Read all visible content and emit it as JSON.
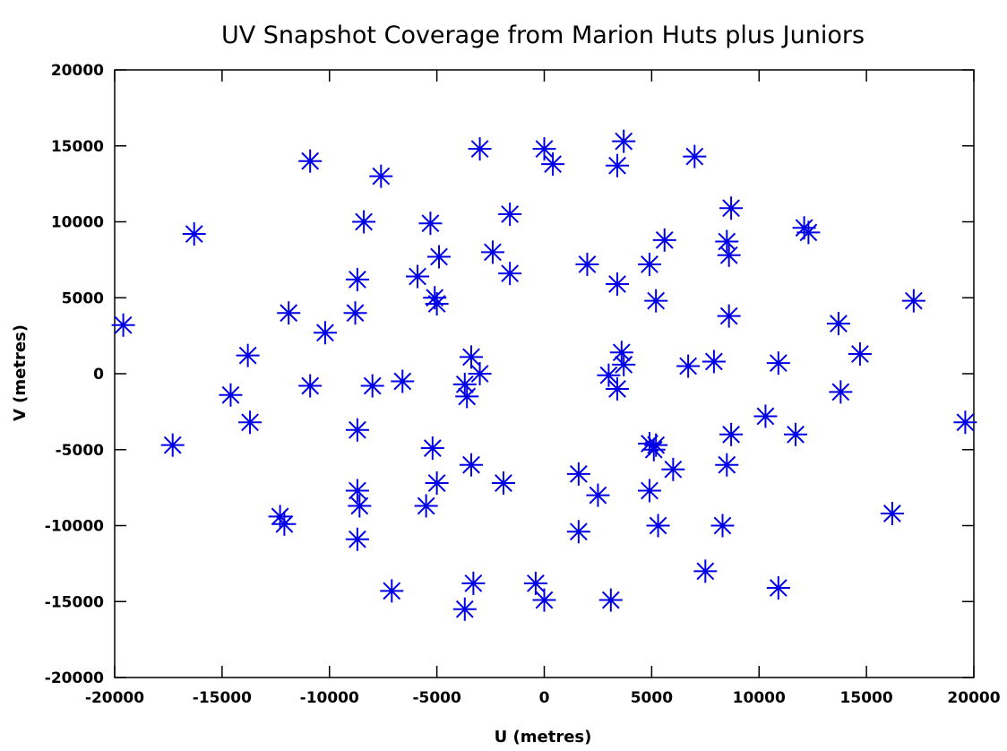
{
  "chart_data": {
    "type": "scatter",
    "title": "UV Snapshot Coverage from Marion Huts plus Juniors",
    "xlabel": "U (metres)",
    "ylabel": "V (metres)",
    "xlim": [
      -20000,
      20000
    ],
    "ylim": [
      -20000,
      20000
    ],
    "xticks": [
      -20000,
      -15000,
      -10000,
      -5000,
      0,
      5000,
      10000,
      15000,
      20000
    ],
    "yticks": [
      -20000,
      -15000,
      -10000,
      -5000,
      0,
      5000,
      10000,
      15000,
      20000
    ],
    "grid": false,
    "marker_color": "#0000e6",
    "marker": "asterisk",
    "points": [
      [
        -19600,
        3200
      ],
      [
        -17300,
        -4700
      ],
      [
        -16300,
        9200
      ],
      [
        -14600,
        -1400
      ],
      [
        -13800,
        1200
      ],
      [
        -13700,
        -3200
      ],
      [
        -12300,
        -9400
      ],
      [
        -12100,
        -9900
      ],
      [
        -11900,
        4000
      ],
      [
        -10900,
        14000
      ],
      [
        -10900,
        -800
      ],
      [
        -10200,
        2700
      ],
      [
        -8800,
        4000
      ],
      [
        -8700,
        6200
      ],
      [
        -8700,
        -3700
      ],
      [
        -8700,
        -7700
      ],
      [
        -8600,
        -8700
      ],
      [
        -8700,
        -10900
      ],
      [
        -8400,
        10000
      ],
      [
        -8000,
        -800
      ],
      [
        -7600,
        13000
      ],
      [
        -7100,
        -14300
      ],
      [
        -6600,
        -500
      ],
      [
        -5900,
        6400
      ],
      [
        -5500,
        -8700
      ],
      [
        -5300,
        9900
      ],
      [
        -5200,
        -4900
      ],
      [
        -5100,
        5000
      ],
      [
        -5000,
        4600
      ],
      [
        -5000,
        -7200
      ],
      [
        -4900,
        7700
      ],
      [
        -3700,
        -700
      ],
      [
        -3600,
        -1500
      ],
      [
        -3700,
        -15500
      ],
      [
        -3400,
        1100
      ],
      [
        -3400,
        -6000
      ],
      [
        -3300,
        -13800
      ],
      [
        -3000,
        14800
      ],
      [
        -3000,
        0
      ],
      [
        -2400,
        8000
      ],
      [
        -1900,
        -7200
      ],
      [
        -1600,
        10500
      ],
      [
        -1600,
        6600
      ],
      [
        -400,
        -13800
      ],
      [
        0,
        14800
      ],
      [
        0,
        -14900
      ],
      [
        400,
        13800
      ],
      [
        1600,
        -6600
      ],
      [
        1600,
        -10400
      ],
      [
        2000,
        7200
      ],
      [
        2500,
        -8000
      ],
      [
        3000,
        -100
      ],
      [
        3100,
        -14900
      ],
      [
        3400,
        13700
      ],
      [
        3400,
        5900
      ],
      [
        3400,
        -1000
      ],
      [
        3600,
        1400
      ],
      [
        3700,
        15300
      ],
      [
        3700,
        600
      ],
      [
        4900,
        7200
      ],
      [
        4900,
        -4600
      ],
      [
        4900,
        -7700
      ],
      [
        5100,
        -5000
      ],
      [
        5200,
        -4700
      ],
      [
        5200,
        4800
      ],
      [
        5300,
        -10000
      ],
      [
        5600,
        8800
      ],
      [
        6000,
        -6300
      ],
      [
        6700,
        500
      ],
      [
        7000,
        14300
      ],
      [
        7500,
        -13000
      ],
      [
        7900,
        800
      ],
      [
        8300,
        -10000
      ],
      [
        8500,
        -6000
      ],
      [
        8500,
        8700
      ],
      [
        8600,
        7800
      ],
      [
        8600,
        3800
      ],
      [
        8700,
        10900
      ],
      [
        8700,
        -4000
      ],
      [
        10300,
        -2800
      ],
      [
        10900,
        700
      ],
      [
        10900,
        -14100
      ],
      [
        11700,
        -4000
      ],
      [
        12100,
        9600
      ],
      [
        12300,
        9300
      ],
      [
        13700,
        3300
      ],
      [
        13800,
        -1200
      ],
      [
        14700,
        1300
      ],
      [
        16200,
        -9200
      ],
      [
        17200,
        4800
      ],
      [
        19600,
        -3200
      ]
    ]
  }
}
